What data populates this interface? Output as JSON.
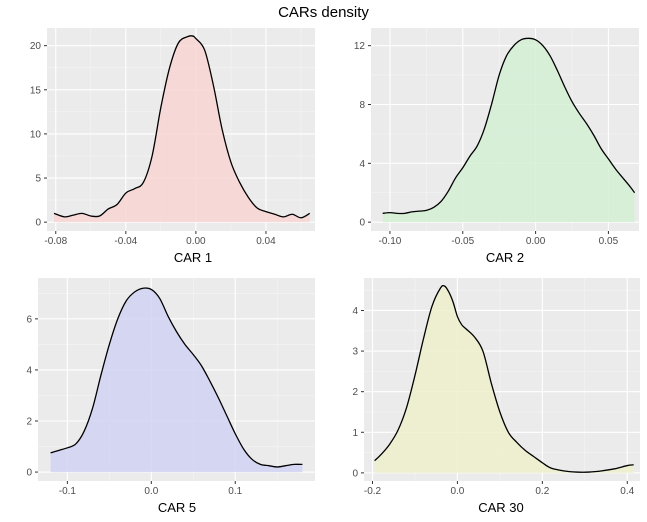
{
  "figure": {
    "title": "CARs density"
  },
  "chart_data": [
    {
      "type": "area",
      "xlabel": "CAR 1",
      "ylabel": "",
      "xlim": [
        -0.085,
        0.068
      ],
      "ylim": [
        -1.0,
        22.0
      ],
      "xticks": [
        -0.08,
        -0.04,
        0.0,
        0.04
      ],
      "xtick_labels": [
        "-0.08",
        "-0.04",
        "0.00",
        "0.04"
      ],
      "yticks": [
        0,
        5,
        10,
        15,
        20
      ],
      "ytick_labels": [
        "0",
        "5",
        "10",
        "15",
        "20"
      ],
      "fill": "#f8d5d4",
      "grid": true,
      "x": [
        -0.081,
        -0.075,
        -0.07,
        -0.065,
        -0.06,
        -0.055,
        -0.05,
        -0.045,
        -0.04,
        -0.035,
        -0.03,
        -0.025,
        -0.02,
        -0.015,
        -0.01,
        -0.005,
        -0.002,
        0.0,
        0.005,
        0.01,
        0.015,
        0.02,
        0.025,
        0.03,
        0.035,
        0.04,
        0.045,
        0.05,
        0.055,
        0.06,
        0.065
      ],
      "values": [
        1.0,
        0.6,
        0.8,
        1.0,
        0.7,
        0.7,
        1.5,
        2.0,
        3.3,
        3.8,
        4.5,
        7.5,
        13.0,
        17.5,
        20.3,
        21.0,
        21.1,
        20.8,
        19.5,
        15.5,
        10.5,
        6.8,
        4.5,
        2.8,
        1.6,
        1.2,
        0.9,
        0.6,
        0.9,
        0.5,
        1.0
      ]
    },
    {
      "type": "area",
      "xlabel": "CAR 2",
      "ylabel": "",
      "xlim": [
        -0.113,
        0.071
      ],
      "ylim": [
        -0.6,
        13.2
      ],
      "xticks": [
        -0.1,
        -0.05,
        0.0,
        0.05
      ],
      "xtick_labels": [
        "-0.10",
        "-0.05",
        "0.00",
        "0.05"
      ],
      "yticks": [
        0,
        4,
        8,
        12
      ],
      "ytick_labels": [
        "0",
        "4",
        "8",
        "12"
      ],
      "fill": "#d3efd4",
      "grid": true,
      "x": [
        -0.105,
        -0.1,
        -0.095,
        -0.09,
        -0.085,
        -0.08,
        -0.075,
        -0.07,
        -0.065,
        -0.06,
        -0.055,
        -0.05,
        -0.045,
        -0.04,
        -0.035,
        -0.03,
        -0.025,
        -0.02,
        -0.015,
        -0.01,
        -0.005,
        0.0,
        0.005,
        0.01,
        0.015,
        0.02,
        0.025,
        0.03,
        0.035,
        0.04,
        0.045,
        0.05,
        0.055,
        0.06,
        0.065,
        0.068
      ],
      "values": [
        0.6,
        0.65,
        0.6,
        0.6,
        0.7,
        0.75,
        0.8,
        1.0,
        1.4,
        2.1,
        3.0,
        3.7,
        4.5,
        5.2,
        6.4,
        8.1,
        10.0,
        11.3,
        12.0,
        12.4,
        12.5,
        12.4,
        12.0,
        11.3,
        10.3,
        9.2,
        8.2,
        7.4,
        6.7,
        5.9,
        5.0,
        4.3,
        3.6,
        3.0,
        2.4,
        2.0
      ]
    },
    {
      "type": "area",
      "xlabel": "CAR 5",
      "ylabel": "",
      "xlim": [
        -0.135,
        0.195
      ],
      "ylim": [
        -0.35,
        7.6
      ],
      "xticks": [
        -0.1,
        0.0,
        0.1
      ],
      "xtick_labels": [
        "-0.1",
        "0.0",
        "0.1"
      ],
      "yticks": [
        0,
        2,
        4,
        6
      ],
      "ytick_labels": [
        "0",
        "2",
        "4",
        "6"
      ],
      "fill": "#d1d3f3",
      "grid": true,
      "x": [
        -0.12,
        -0.11,
        -0.1,
        -0.09,
        -0.08,
        -0.07,
        -0.06,
        -0.05,
        -0.04,
        -0.03,
        -0.02,
        -0.01,
        0.0,
        0.01,
        0.02,
        0.03,
        0.04,
        0.05,
        0.06,
        0.07,
        0.08,
        0.09,
        0.1,
        0.11,
        0.12,
        0.13,
        0.14,
        0.15,
        0.16,
        0.17,
        0.18
      ],
      "values": [
        0.75,
        0.85,
        0.95,
        1.1,
        1.6,
        2.5,
        3.8,
        5.0,
        6.0,
        6.7,
        7.05,
        7.2,
        7.15,
        6.8,
        6.1,
        5.5,
        5.0,
        4.6,
        4.15,
        3.55,
        2.9,
        2.2,
        1.5,
        0.9,
        0.5,
        0.3,
        0.25,
        0.2,
        0.25,
        0.3,
        0.3
      ]
    },
    {
      "type": "area",
      "xlabel": "CAR 30",
      "ylabel": "",
      "xlim": [
        -0.22,
        0.43
      ],
      "ylim": [
        -0.2,
        4.8
      ],
      "xticks": [
        -0.2,
        0.0,
        0.2,
        0.4
      ],
      "xtick_labels": [
        "-0.2",
        "0.0",
        "0.2",
        "0.4"
      ],
      "yticks": [
        0,
        1,
        2,
        3,
        4
      ],
      "ytick_labels": [
        "0",
        "1",
        "2",
        "3",
        "4"
      ],
      "fill": "#eeeecb",
      "grid": true,
      "x": [
        -0.195,
        -0.18,
        -0.16,
        -0.14,
        -0.12,
        -0.1,
        -0.08,
        -0.06,
        -0.04,
        -0.03,
        -0.02,
        -0.01,
        0.0,
        0.01,
        0.02,
        0.04,
        0.06,
        0.08,
        0.1,
        0.12,
        0.14,
        0.16,
        0.18,
        0.2,
        0.22,
        0.25,
        0.28,
        0.31,
        0.34,
        0.37,
        0.4,
        0.415
      ],
      "values": [
        0.3,
        0.45,
        0.7,
        1.05,
        1.6,
        2.4,
        3.3,
        4.1,
        4.55,
        4.6,
        4.45,
        4.2,
        3.85,
        3.65,
        3.55,
        3.35,
        3.0,
        2.2,
        1.5,
        1.0,
        0.75,
        0.55,
        0.4,
        0.25,
        0.12,
        0.05,
        0.02,
        0.02,
        0.05,
        0.1,
        0.18,
        0.2
      ]
    }
  ]
}
